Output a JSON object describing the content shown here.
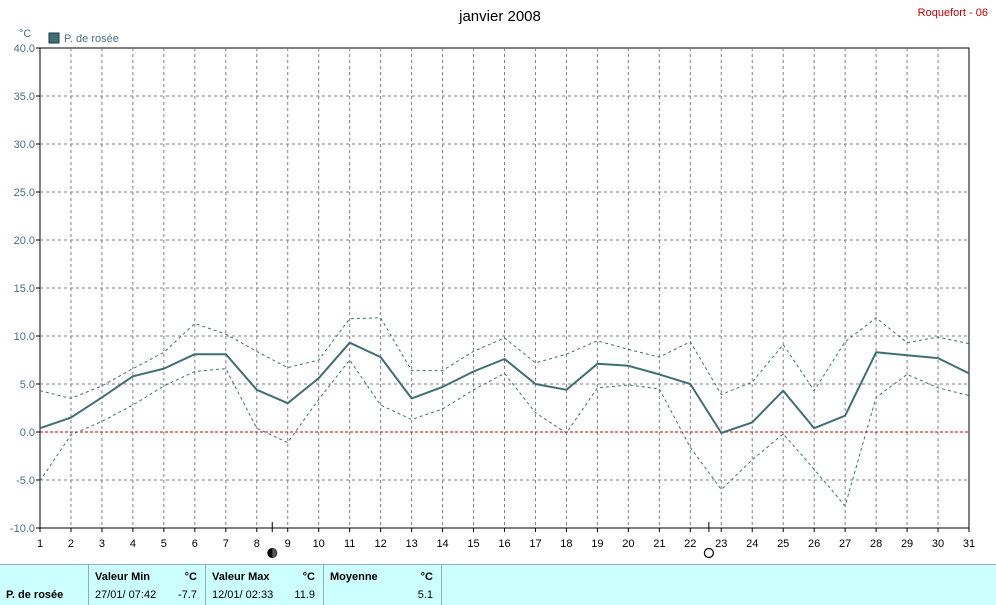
{
  "chart_data": {
    "type": "line",
    "title": "janvier 2008",
    "station": "Roquefort - 06",
    "unit": "°C",
    "legend": "P. de rosée",
    "x": [
      1,
      2,
      3,
      4,
      5,
      6,
      7,
      8,
      9,
      10,
      11,
      12,
      13,
      14,
      15,
      16,
      17,
      18,
      19,
      20,
      21,
      22,
      23,
      24,
      25,
      26,
      27,
      28,
      29,
      30,
      31
    ],
    "ylim": [
      -10,
      40
    ],
    "yticks": [
      "-10.0",
      "-5.0",
      "0.0",
      "5.0",
      "10.0",
      "15.0",
      "20.0",
      "25.0",
      "30.0",
      "35.0",
      "40.0"
    ],
    "xticks": [
      "1",
      "2",
      "3",
      "4",
      "5",
      "6",
      "7",
      "8",
      "9",
      "10",
      "11",
      "12",
      "13",
      "14",
      "15",
      "16",
      "17",
      "18",
      "19",
      "20",
      "21",
      "22",
      "23",
      "24",
      "25",
      "26",
      "27",
      "28",
      "29",
      "30",
      "31"
    ],
    "series": [
      {
        "name": "P. de rosée",
        "color": "#3f6f73",
        "values": [
          0.4,
          1.5,
          3.6,
          5.8,
          6.6,
          8.1,
          8.1,
          4.4,
          3.0,
          5.6,
          9.3,
          7.8,
          3.5,
          4.7,
          6.3,
          7.6,
          5.0,
          4.4,
          7.1,
          6.9,
          6.0,
          5.0,
          -0.1,
          1.0,
          4.3,
          0.4,
          1.7,
          8.3,
          8.0,
          7.7,
          6.1
        ]
      },
      {
        "name": "",
        "color": "#3f6f73",
        "style": "dashed",
        "values": [
          4.3,
          3.5,
          4.8,
          6.6,
          8.3,
          11.3,
          10.2,
          8.4,
          6.7,
          7.5,
          11.8,
          11.9,
          6.4,
          6.4,
          8.4,
          9.8,
          7.2,
          8.1,
          9.5,
          8.6,
          7.8,
          9.4,
          3.9,
          5.2,
          9.1,
          4.3,
          9.4,
          11.9,
          9.3,
          9.9,
          9.2
        ]
      },
      {
        "name": "",
        "color": "#3f6f73",
        "style": "dashed",
        "values": [
          -5.1,
          -0.3,
          1.1,
          2.8,
          4.8,
          6.3,
          6.6,
          0.4,
          -1.1,
          3.4,
          7.5,
          2.8,
          1.3,
          2.4,
          4.4,
          6.1,
          2.0,
          -0.1,
          4.6,
          4.9,
          4.5,
          -1.6,
          -6.0,
          -2.9,
          -0.2,
          -3.9,
          -7.7,
          3.6,
          6.0,
          4.6,
          3.8
        ]
      }
    ],
    "zero_line_color": "#cc0000",
    "grid": true,
    "moon_phases": [
      {
        "day": 8.5,
        "phase": "full"
      },
      {
        "day": 22.6,
        "phase": "new"
      }
    ]
  },
  "stats": {
    "series_label": "P. de rosée",
    "min": {
      "header": "Valeur Min",
      "unit": "°C",
      "date": "27/01/",
      "time": "07:42",
      "value": "-7.7"
    },
    "max": {
      "header": "Valeur Max",
      "unit": "°C",
      "date": "12/01/",
      "time": "02:33",
      "value": "11.9"
    },
    "avg": {
      "header": "Moyenne",
      "unit": "°C",
      "value": "5.1"
    }
  }
}
